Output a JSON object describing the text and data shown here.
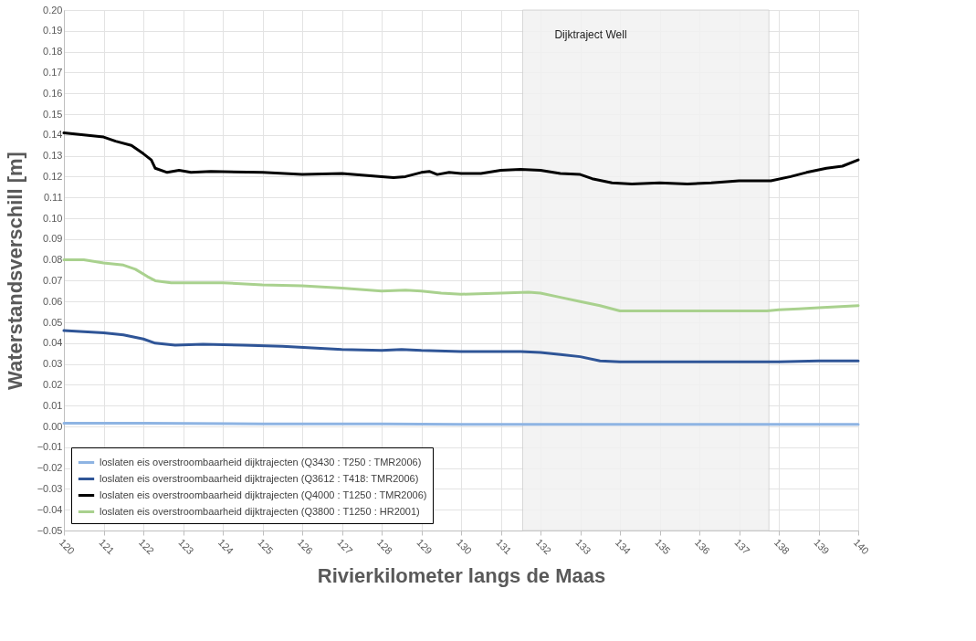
{
  "chart_data": {
    "type": "line",
    "xlabel": "Rivierkilometer langs de Maas",
    "ylabel": "Waterstandsverschill [m]",
    "xlim": [
      120,
      140
    ],
    "xticks": [
      120,
      121,
      122,
      123,
      124,
      125,
      126,
      127,
      128,
      129,
      130,
      131,
      132,
      133,
      134,
      135,
      136,
      137,
      138,
      139,
      140
    ],
    "ylim": [
      -0.05,
      0.2
    ],
    "yticks": [
      -0.05,
      -0.04,
      -0.03,
      -0.02,
      -0.01,
      {
        "value": 0,
        "label": "0.00"
      },
      0.01,
      0.02,
      0.03,
      0.04,
      0.05,
      0.06,
      0.07,
      0.08,
      0.09,
      {
        "value": 0.1,
        "label": "0.10"
      },
      0.11,
      0.12,
      0.13,
      0.14,
      0.15,
      0.16,
      0.17,
      0.18,
      0.19,
      {
        "value": 0.2,
        "label": "0.20"
      }
    ],
    "grid": true,
    "legend": "bottom left",
    "marker": "none",
    "line_style": "solid",
    "bands": [
      {
        "axis": "x",
        "from": 131.55,
        "to": 137.75,
        "label": "Dijktraject Well",
        "color": "#f2f2f2"
      }
    ],
    "series": [
      {
        "name": "loslaten eis overstroombaarheid dijktrajecten (Q3430 : T250 : TMR2006)",
        "color": "#8eb4e3",
        "x": [
          120,
          122,
          125,
          128,
          130,
          135,
          140
        ],
        "values": [
          0.0015,
          0.0015,
          0.0012,
          0.0012,
          0.001,
          0.001,
          0.001
        ]
      },
      {
        "name": "loslaten eis overstroombaarheid dijktrajecten (Q3612 : T418: TMR2006)",
        "color": "#2f5597",
        "x": [
          120,
          121,
          121.5,
          122,
          122.3,
          122.8,
          123.5,
          124.5,
          125.5,
          127,
          128,
          128.5,
          129,
          130,
          131,
          131.5,
          132,
          132.5,
          133,
          133.5,
          134,
          135,
          136,
          137,
          138,
          139,
          140
        ],
        "values": [
          0.046,
          0.045,
          0.044,
          0.042,
          0.04,
          0.039,
          0.0395,
          0.039,
          0.0385,
          0.037,
          0.0365,
          0.037,
          0.0365,
          0.036,
          0.036,
          0.036,
          0.0355,
          0.0345,
          0.0335,
          0.0315,
          0.031,
          0.031,
          0.031,
          0.031,
          0.031,
          0.0315,
          0.0315
        ]
      },
      {
        "name": "loslaten eis overstroombaarheid dijktrajecten (Q4000 : T1250 : TMR2006)",
        "color": "#000000",
        "x": [
          120,
          120.5,
          121,
          121.3,
          121.7,
          122,
          122.2,
          122.3,
          122.6,
          122.9,
          123.2,
          123.7,
          125,
          126,
          127,
          128,
          128.3,
          128.6,
          129,
          129.2,
          129.4,
          129.7,
          130,
          130.5,
          131,
          131.5,
          132,
          132.5,
          133,
          133.3,
          133.8,
          134.3,
          135,
          135.7,
          136.3,
          137,
          137.8,
          138.3,
          138.7,
          139.2,
          139.6,
          140
        ],
        "values": [
          0.141,
          0.14,
          0.139,
          0.137,
          0.135,
          0.131,
          0.128,
          0.124,
          0.122,
          0.123,
          0.122,
          0.1225,
          0.122,
          0.121,
          0.1215,
          0.12,
          0.1195,
          0.12,
          0.122,
          0.1225,
          0.121,
          0.122,
          0.1215,
          0.1215,
          0.123,
          0.1235,
          0.123,
          0.1215,
          0.121,
          0.119,
          0.117,
          0.1165,
          0.117,
          0.1165,
          0.117,
          0.118,
          0.118,
          0.12,
          0.122,
          0.124,
          0.125,
          0.128
        ]
      },
      {
        "name": "loslaten eis overstroombaarheid dijktrajecten (Q3800 : T1250 : HR2001)",
        "color": "#a9d18e",
        "x": [
          120,
          120.5,
          121,
          121.5,
          121.8,
          122.1,
          122.3,
          122.7,
          124,
          125,
          126,
          127,
          128,
          128.6,
          129,
          129.5,
          130,
          131,
          131.7,
          132,
          132.5,
          133,
          133.5,
          134,
          135,
          136,
          137,
          137.7,
          138,
          138.5,
          139,
          140
        ],
        "values": [
          0.08,
          0.08,
          0.0785,
          0.0775,
          0.0755,
          0.072,
          0.07,
          0.069,
          0.069,
          0.068,
          0.0675,
          0.0665,
          0.065,
          0.0655,
          0.065,
          0.064,
          0.0635,
          0.064,
          0.0645,
          0.064,
          0.062,
          0.06,
          0.058,
          0.0555,
          0.0555,
          0.0555,
          0.0555,
          0.0555,
          0.056,
          0.0565,
          0.057,
          0.058
        ]
      }
    ]
  }
}
